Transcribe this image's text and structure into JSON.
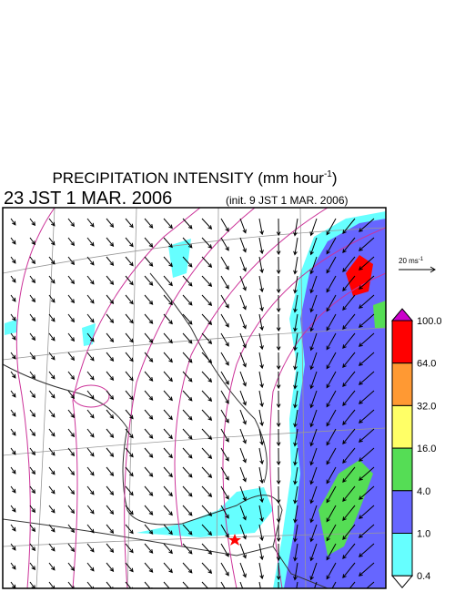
{
  "title": {
    "main": "PRECIPITATION INTENSITY (mm hour",
    "superscript": "-1",
    "close": ")"
  },
  "time": "23 JST 1 MAR. 2006",
  "init": "(init. 9 JST 1 MAR. 2006)",
  "wind_reference": {
    "label": "20 ms",
    "superscript": "-1"
  },
  "colorbar": {
    "labels": [
      "100.0",
      "64.0",
      "32.0",
      "16.0",
      "4.0",
      "1.0",
      "0.4"
    ],
    "colors": [
      "#cc00cc",
      "#ff0000",
      "#ff9933",
      "#ffff66",
      "#55dd55",
      "#6666ff",
      "#66ffff",
      "#ffffff"
    ]
  }
}
